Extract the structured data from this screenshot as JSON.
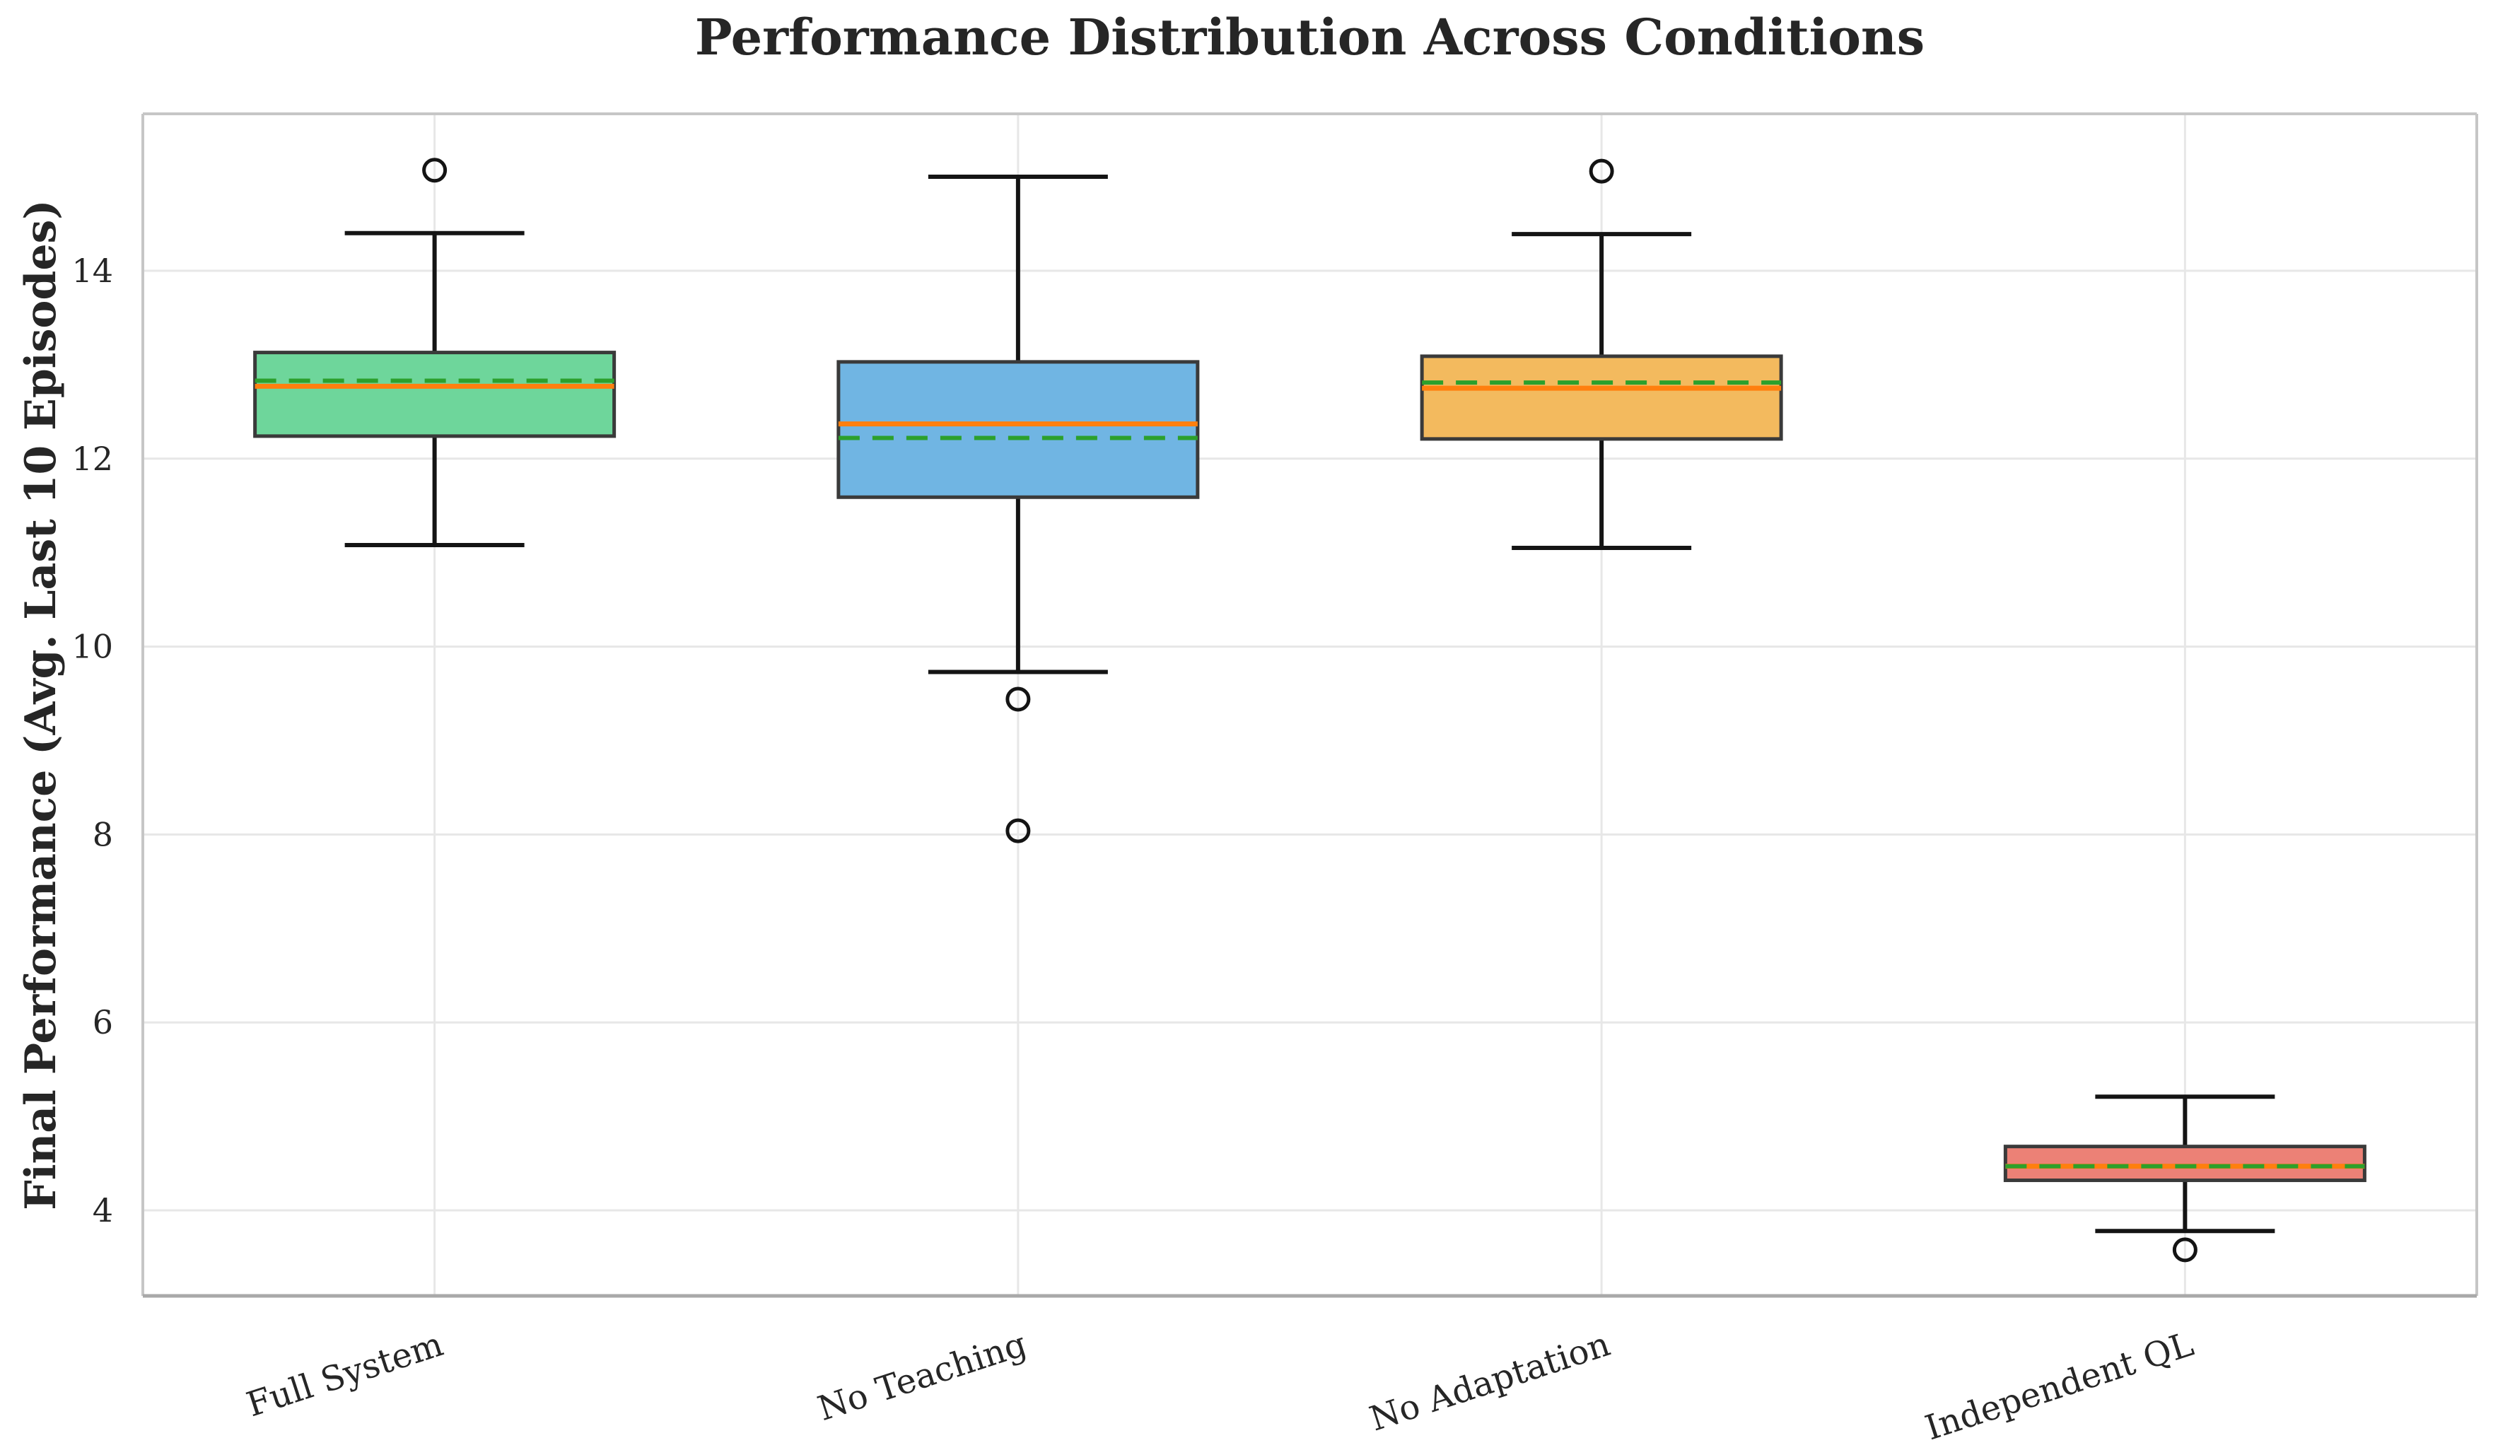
{
  "chart_data": {
    "type": "boxplot",
    "title": "Performance Distribution Across Conditions",
    "ylabel": "Final Performance (Avg. Last 10 Episodes)",
    "xlabel": "",
    "categories": [
      "Full System",
      "No Teaching",
      "No Adaptation",
      "Independent QL"
    ],
    "yticks": [
      4,
      6,
      8,
      10,
      12,
      14
    ],
    "ylim": [
      3.09,
      15.67
    ],
    "grid": true,
    "legend": "none",
    "series": [
      {
        "name": "Full System",
        "color": "#6ed69b",
        "whisker_low": 11.08,
        "q1": 12.24,
        "median": 12.77,
        "mean": 12.83,
        "q3": 13.13,
        "whisker_high": 14.4,
        "outliers": [
          15.07
        ]
      },
      {
        "name": "No Teaching",
        "color": "#70b5e3",
        "whisker_low": 9.73,
        "q1": 11.59,
        "median": 12.37,
        "mean": 12.22,
        "q3": 13.03,
        "whisker_high": 15.0,
        "outliers": [
          9.44,
          8.04
        ]
      },
      {
        "name": "No Adaptation",
        "color": "#f3ba5e",
        "whisker_low": 11.05,
        "q1": 12.21,
        "median": 12.75,
        "mean": 12.81,
        "q3": 13.09,
        "whisker_high": 14.39,
        "outliers": [
          15.06
        ]
      },
      {
        "name": "Independent QL",
        "color": "#ec8176",
        "whisker_low": 3.78,
        "q1": 4.32,
        "median": 4.47,
        "mean": 4.47,
        "q3": 4.68,
        "whisker_high": 5.21,
        "outliers": [
          3.58
        ]
      }
    ],
    "style": {
      "median_color": "#ff7f0e",
      "mean_color": "#2ca02c",
      "box_edge_color": "#3a3a3a",
      "whisker_color": "#141414",
      "grid_color": "#e7e7e7",
      "spine_color": "#c6c6c6",
      "bottom_spine_color": "#a9a9a9",
      "text_color": "#262626"
    }
  }
}
